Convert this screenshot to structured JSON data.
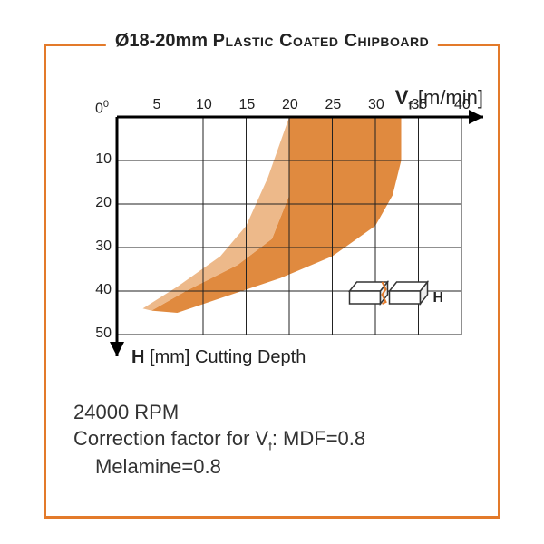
{
  "title_prefix": "Ø18-20mm ",
  "title_main": "Plastic Coated Chipboard",
  "chart": {
    "type": "area",
    "x_axis": {
      "label_symbol": "V",
      "label_sub": "f",
      "unit": "[m/min]",
      "min": 0,
      "max": 40,
      "ticks": [
        0,
        5,
        10,
        15,
        20,
        25,
        30,
        35,
        40
      ]
    },
    "y_axis": {
      "label_symbol": "H",
      "unit": "[mm]",
      "sub_label": "Cutting Depth",
      "min": 0,
      "max": 50,
      "ticks": [
        0,
        10,
        20,
        30,
        40,
        50
      ],
      "origin_label_top": 0,
      "inverted": true
    },
    "grid": {
      "show": true,
      "color": "#222222",
      "width": 1
    },
    "plot_bg": "#ffffff",
    "region_upper": {
      "fill": "#e08a3f",
      "points_xy": [
        [
          20,
          0
        ],
        [
          33,
          0
        ],
        [
          33,
          10
        ],
        [
          32,
          18
        ],
        [
          30,
          25
        ],
        [
          25,
          32
        ],
        [
          19,
          37
        ],
        [
          13,
          41
        ],
        [
          7,
          45
        ],
        [
          4,
          44.5
        ],
        [
          8,
          40
        ],
        [
          14,
          34
        ],
        [
          18,
          28
        ],
        [
          20,
          18
        ]
      ]
    },
    "region_lower_overlay": {
      "fill": "#edb98a",
      "points_xy": [
        [
          20,
          0
        ],
        [
          20,
          18
        ],
        [
          18,
          28
        ],
        [
          14,
          34
        ],
        [
          8,
          40
        ],
        [
          4,
          44.5
        ],
        [
          3,
          44
        ],
        [
          7,
          39
        ],
        [
          12,
          32
        ],
        [
          15,
          25
        ],
        [
          17.5,
          14
        ]
      ]
    },
    "diagram_label": "H",
    "axis_arrow_color": "#000000"
  },
  "footer": {
    "rpm_line": "24000 RPM",
    "correction_prefix": "Correction factor for V",
    "correction_sub": "f",
    "correction_mdf": ": MDF=0.8",
    "melamine_line": "Melamine=0.8"
  },
  "colors": {
    "frame": "#e37a2a",
    "text": "#222222"
  },
  "fontsize": {
    "title": 20,
    "axis_label": 20,
    "tick": 16,
    "footer": 22
  }
}
